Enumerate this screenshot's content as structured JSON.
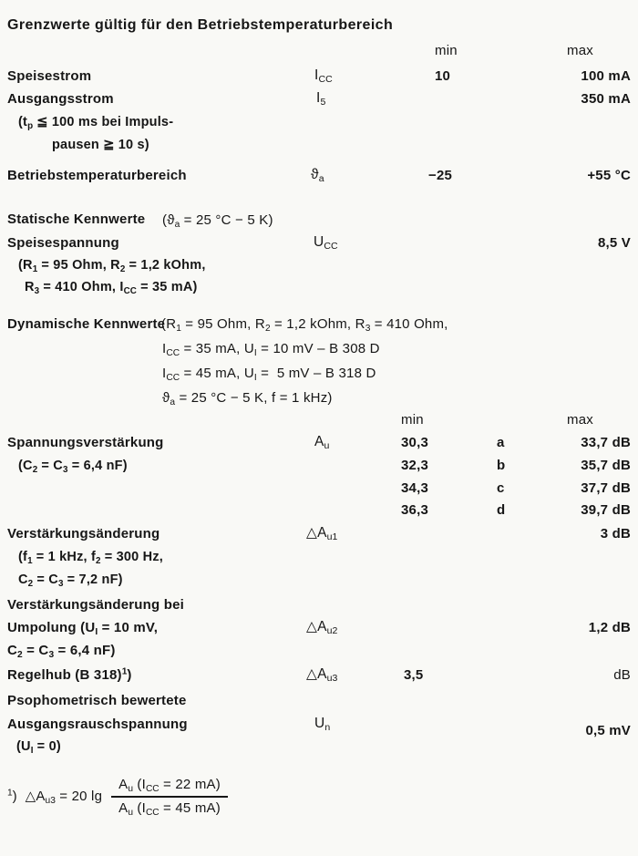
{
  "title": "Grenzwerte gültig für den Betriebstemperaturbereich",
  "columns": {
    "min": "min",
    "max": "max"
  },
  "limits": {
    "speisestrom": {
      "label": "Speisestrom",
      "symbol": [
        {
          "t": "I"
        },
        {
          "s": "CC"
        }
      ],
      "min": "10",
      "max": "100 mA"
    },
    "ausgangsstrom": {
      "label": "Ausgangsstrom",
      "symbol": [
        {
          "t": "I"
        },
        {
          "s": "5"
        }
      ],
      "max": "350 mA",
      "note1": [
        {
          "t": "(t"
        },
        {
          "s": "p"
        },
        {
          "t": " ≦ 100 ms bei Impuls-"
        }
      ],
      "note2": "pausen ≧ 10 s)"
    },
    "betriebstemperatur": {
      "label": "Betriebstemperaturbereich",
      "symbol": [
        {
          "t": "ϑ"
        },
        {
          "s": "a"
        }
      ],
      "min": "−25",
      "max": "+55 °C"
    }
  },
  "statisch": {
    "heading": "Statische Kennwerte",
    "heading_cond": [
      {
        "t": "(ϑ"
      },
      {
        "s": "a"
      },
      {
        "t": " = 25 °C − 5 K)"
      }
    ],
    "speisespannung": {
      "label": "Speisespannung",
      "symbol": [
        {
          "t": "U"
        },
        {
          "s": "CC"
        }
      ],
      "max": "8,5 V",
      "cond1": [
        {
          "t": "(R"
        },
        {
          "s": "1"
        },
        {
          "t": " = 95 Ohm, R"
        },
        {
          "s": "2"
        },
        {
          "t": " = 1,2 kOhm,"
        }
      ],
      "cond2": [
        {
          "t": "R"
        },
        {
          "s": "3"
        },
        {
          "t": " = 410 Ohm, I"
        },
        {
          "s": "CC"
        },
        {
          "t": " = 35 mA)"
        }
      ]
    }
  },
  "dynamisch": {
    "heading": "Dynamische Kennwerte",
    "cond_line1": [
      {
        "t": "(R"
      },
      {
        "s": "1"
      },
      {
        "t": " = 95 Ohm, R"
      },
      {
        "s": "2"
      },
      {
        "t": " = 1,2 kOhm, R"
      },
      {
        "s": "3"
      },
      {
        "t": " = 410 Ohm,"
      }
    ],
    "cond_line2": [
      {
        "t": "I"
      },
      {
        "s": "CC"
      },
      {
        "t": " = 35 mA, U"
      },
      {
        "s": "I"
      },
      {
        "t": " = 10 mV – B 308 D"
      }
    ],
    "cond_line3": [
      {
        "t": "I"
      },
      {
        "s": "CC"
      },
      {
        "t": " = 45 mA, U"
      },
      {
        "s": "I"
      },
      {
        "t": " =  5 mV – B 318 D"
      }
    ],
    "cond_line4": [
      {
        "t": "ϑ"
      },
      {
        "s": "a"
      },
      {
        "t": " = 25 °C − 5 K, f = 1 kHz)"
      }
    ],
    "spannungsverstaerkung": {
      "label": "Spannungsverstärkung",
      "cond": [
        {
          "t": "(C"
        },
        {
          "s": "2"
        },
        {
          "t": " = C"
        },
        {
          "s": "3"
        },
        {
          "t": " = 6,4 nF)"
        }
      ],
      "symbol": [
        {
          "t": "A"
        },
        {
          "s": "u"
        }
      ],
      "rows": [
        {
          "min": "30,3",
          "variant": "a",
          "max": "33,7 dB"
        },
        {
          "min": "32,3",
          "variant": "b",
          "max": "35,7 dB"
        },
        {
          "min": "34,3",
          "variant": "c",
          "max": "37,7 dB"
        },
        {
          "min": "36,3",
          "variant": "d",
          "max": "39,7 dB"
        }
      ]
    },
    "au1": {
      "label": "Verstärkungsänderung",
      "cond1": [
        {
          "t": "(f"
        },
        {
          "s": "1"
        },
        {
          "t": " = 1 kHz, f"
        },
        {
          "s": "2"
        },
        {
          "t": " = 300 Hz,"
        }
      ],
      "cond2": [
        {
          "t": "C"
        },
        {
          "s": "2"
        },
        {
          "t": " = C"
        },
        {
          "s": "3"
        },
        {
          "t": " = 7,2 nF)"
        }
      ],
      "symbol": [
        {
          "t": "△A"
        },
        {
          "s": "u1"
        }
      ],
      "max": "3 dB"
    },
    "au2": {
      "label1": "Verstärkungsänderung bei",
      "label2": [
        {
          "t": "Umpolung (U"
        },
        {
          "s": "I"
        },
        {
          "t": " = 10 mV,"
        }
      ],
      "label3": [
        {
          "t": "C"
        },
        {
          "s": "2"
        },
        {
          "t": " = C"
        },
        {
          "s": "3"
        },
        {
          "t": " = 6,4 nF)"
        }
      ],
      "symbol": [
        {
          "t": "△A"
        },
        {
          "s": "u2"
        }
      ],
      "max": "1,2 dB"
    },
    "au3": {
      "label": [
        {
          "t": "Regelhub (B 318)"
        },
        {
          "p": "1"
        },
        {
          "t": ")"
        }
      ],
      "symbol": [
        {
          "t": "△A"
        },
        {
          "s": "u3"
        }
      ],
      "min": "3,5",
      "max": "dB"
    },
    "noise": {
      "label1": "Psophometrisch bewertete",
      "label2": "Ausgangsrauschspannung",
      "label3": [
        {
          "t": "(U"
        },
        {
          "s": "I"
        },
        {
          "t": " = 0)"
        }
      ],
      "symbol": [
        {
          "t": "U"
        },
        {
          "s": "n"
        }
      ],
      "max": "0,5 mV"
    }
  },
  "footnote": {
    "lhs": [
      {
        "p": "1"
      },
      {
        "t": ")  △A"
      },
      {
        "s": "u3"
      },
      {
        "t": " = 20 lg"
      }
    ],
    "numerator": [
      {
        "t": "A"
      },
      {
        "s": "u"
      },
      {
        "t": " (I"
      },
      {
        "s": "CC"
      },
      {
        "t": " = 22 mA)"
      }
    ],
    "denominator": [
      {
        "t": "A"
      },
      {
        "s": "u"
      },
      {
        "t": " (I"
      },
      {
        "s": "CC"
      },
      {
        "t": " = 45 mA)"
      }
    ]
  },
  "colors": {
    "paper": "#f9f9f6",
    "ink": "#161616"
  }
}
